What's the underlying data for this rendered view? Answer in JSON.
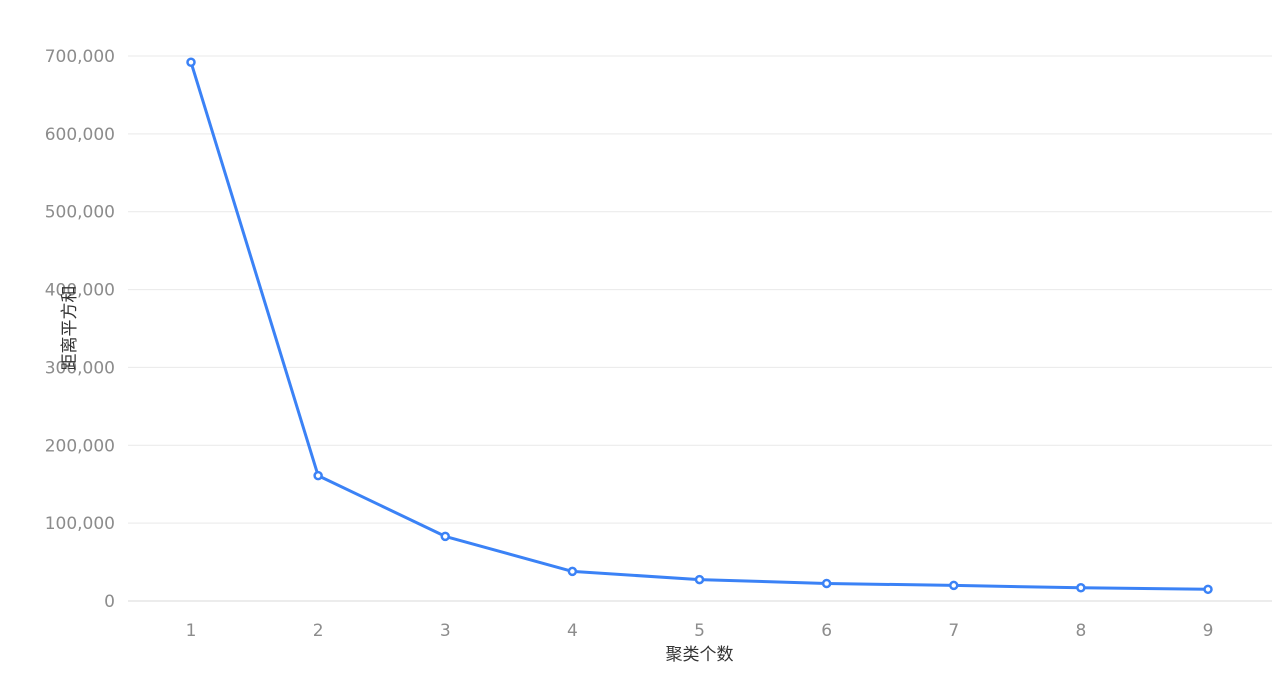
{
  "chart_data": {
    "type": "line",
    "xlabel": "聚类个数",
    "ylabel": "距离平方和",
    "x": [
      1,
      2,
      3,
      4,
      5,
      6,
      7,
      8,
      9
    ],
    "x_tick_labels": [
      "1",
      "2",
      "3",
      "4",
      "5",
      "6",
      "7",
      "8",
      "9"
    ],
    "ylim": [
      0,
      700000
    ],
    "y_ticks": [
      0,
      100000,
      200000,
      300000,
      400000,
      500000,
      600000,
      700000
    ],
    "y_tick_labels": [
      "0",
      "100,000",
      "200,000",
      "300,000",
      "400,000",
      "500,000",
      "600,000",
      "700,000"
    ],
    "series": [
      {
        "values": [
          692000,
          161000,
          83000,
          38000,
          27500,
          22500,
          20000,
          17000,
          15000
        ],
        "color": "#3b82f6"
      }
    ],
    "grid": true,
    "legend": "none"
  }
}
